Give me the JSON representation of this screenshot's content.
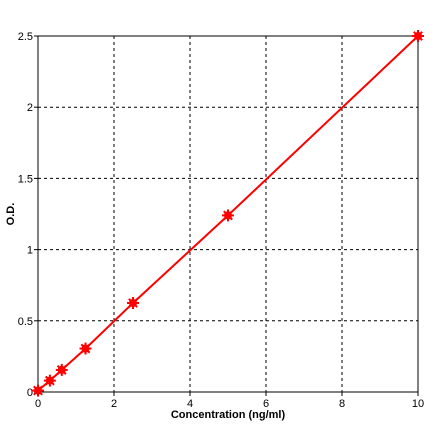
{
  "chart_data": {
    "type": "line",
    "title": "",
    "xlabel": "Concentration (ng/ml)",
    "ylabel": "O.D.",
    "xlim": [
      0,
      10
    ],
    "ylim": [
      0,
      2.5
    ],
    "x_ticks": [
      "0",
      "2",
      "4",
      "6",
      "8",
      "10"
    ],
    "y_ticks": [
      "0",
      "0.5",
      "1",
      "1.5",
      "2",
      "2.5"
    ],
    "grid": true,
    "grid_style": "dashed",
    "series": [
      {
        "x": [
          0,
          0.3125,
          0.625,
          1.25,
          2.5,
          5,
          10
        ],
        "y": [
          0.01,
          0.08,
          0.155,
          0.305,
          0.625,
          1.24,
          2.5
        ],
        "marker": "asterisk",
        "color": "#ff0000"
      }
    ]
  }
}
